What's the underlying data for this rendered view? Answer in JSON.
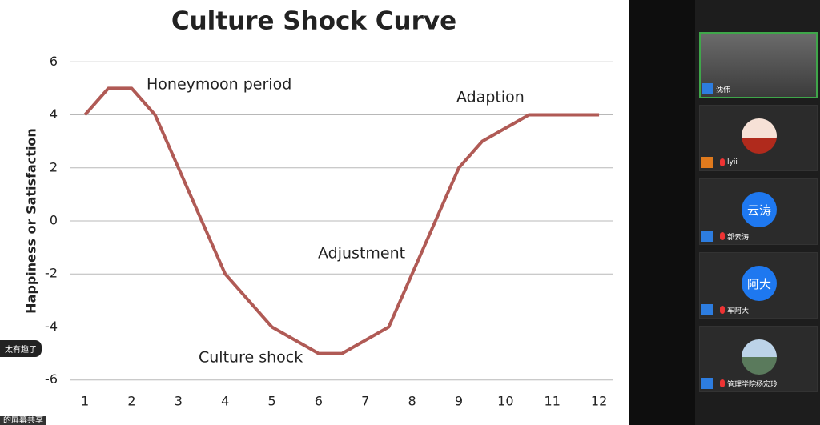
{
  "chart_data": {
    "type": "line",
    "title": "Culture Shock Curve",
    "y_label": "Happiness or Satisfaction",
    "x": [
      1,
      1.5,
      2,
      2.5,
      4,
      5,
      6,
      6.5,
      7.5,
      8,
      9,
      9.5,
      10.5,
      12
    ],
    "values": [
      4,
      5,
      5,
      4,
      -2,
      -4,
      -5,
      -5,
      -4,
      -2,
      2,
      3,
      4,
      4
    ],
    "color": "#b05a55",
    "xlim": [
      0.69,
      12.29
    ],
    "xticks": [
      1,
      2,
      3,
      4,
      5,
      6,
      7,
      8,
      9,
      10,
      11,
      12
    ],
    "ylim": [
      -6.1,
      6.1
    ],
    "yticks": [
      -6,
      -4,
      -2,
      0,
      2,
      4,
      6
    ],
    "grid": true,
    "annotations": [
      "Honeymoon period",
      "Adaption",
      "Adjustment",
      "Culture shock"
    ]
  },
  "chat_message": "太有趣了",
  "share_label": "的屏幕共享",
  "participants": [
    {
      "name": "沈伟"
    },
    {
      "name": "lyii"
    },
    {
      "name": "郭云涛",
      "avatar": "云涛"
    },
    {
      "name": "车阿大",
      "avatar": "阿大"
    },
    {
      "name": "管理学院杨宏玲"
    }
  ]
}
